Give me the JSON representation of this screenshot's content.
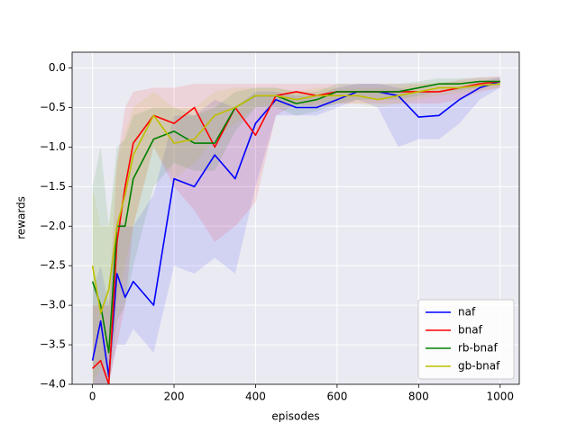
{
  "chart_data": {
    "type": "line",
    "xlabel": "episodes",
    "ylabel": "rewards",
    "x": [
      0,
      20,
      40,
      60,
      80,
      100,
      150,
      200,
      250,
      300,
      350,
      400,
      450,
      500,
      550,
      600,
      650,
      700,
      750,
      800,
      850,
      900,
      950,
      1000
    ],
    "series": [
      {
        "name": "naf",
        "color": "#0000ff",
        "values": [
          -3.7,
          -3.2,
          -3.9,
          -2.6,
          -2.9,
          -2.7,
          -3.0,
          -1.4,
          -1.5,
          -1.1,
          -1.4,
          -0.7,
          -0.4,
          -0.5,
          -0.5,
          -0.4,
          -0.3,
          -0.3,
          -0.35,
          -0.62,
          -0.6,
          -0.4,
          -0.25,
          -0.17
        ],
        "lower": [
          -4.0,
          -4.0,
          -4.0,
          -3.5,
          -3.5,
          -3.3,
          -3.6,
          -2.5,
          -2.6,
          -2.4,
          -2.6,
          -1.5,
          -0.6,
          -0.6,
          -0.6,
          -0.5,
          -0.4,
          -0.5,
          -1.0,
          -0.9,
          -0.9,
          -0.7,
          -0.4,
          -0.25
        ],
        "upper": [
          -2.8,
          -2.5,
          -3.0,
          -1.9,
          -2.0,
          -2.0,
          -1.6,
          -0.6,
          -0.6,
          -0.4,
          -0.5,
          -0.3,
          -0.3,
          -0.35,
          -0.35,
          -0.25,
          -0.2,
          -0.2,
          -0.25,
          -0.3,
          -0.3,
          -0.25,
          -0.17,
          -0.12
        ]
      },
      {
        "name": "bnaf",
        "color": "#ff0000",
        "values": [
          -3.8,
          -3.7,
          -4.0,
          -2.2,
          -1.5,
          -0.95,
          -0.6,
          -0.7,
          -0.5,
          -1.0,
          -0.5,
          -0.85,
          -0.35,
          -0.3,
          -0.35,
          -0.3,
          -0.3,
          -0.3,
          -0.3,
          -0.3,
          -0.3,
          -0.25,
          -0.2,
          -0.17
        ],
        "lower": [
          -4.0,
          -4.0,
          -4.0,
          -3.5,
          -3.0,
          -2.0,
          -1.0,
          -1.5,
          -1.8,
          -2.2,
          -2.0,
          -1.7,
          -0.6,
          -0.45,
          -0.5,
          -0.45,
          -0.45,
          -0.45,
          -0.45,
          -0.45,
          -0.45,
          -0.4,
          -0.3,
          -0.25
        ],
        "upper": [
          -3.0,
          -3.0,
          -3.0,
          -1.2,
          -0.5,
          -0.3,
          -0.25,
          -0.25,
          -0.2,
          -0.2,
          -0.2,
          -0.2,
          -0.2,
          -0.2,
          -0.2,
          -0.2,
          -0.2,
          -0.2,
          -0.2,
          -0.2,
          -0.2,
          -0.15,
          -0.12,
          -0.1
        ]
      },
      {
        "name": "rb-bnaf",
        "color": "#008000",
        "values": [
          -2.7,
          -3.0,
          -3.6,
          -2.0,
          -2.0,
          -1.4,
          -0.9,
          -0.8,
          -0.95,
          -0.95,
          -0.5,
          -0.35,
          -0.35,
          -0.45,
          -0.4,
          -0.3,
          -0.3,
          -0.3,
          -0.3,
          -0.25,
          -0.2,
          -0.2,
          -0.17,
          -0.17
        ],
        "lower": [
          -4.0,
          -4.0,
          -4.0,
          -3.2,
          -3.0,
          -2.5,
          -1.5,
          -1.2,
          -1.3,
          -1.3,
          -0.8,
          -0.5,
          -0.5,
          -0.6,
          -0.55,
          -0.45,
          -0.4,
          -0.4,
          -0.4,
          -0.35,
          -0.3,
          -0.28,
          -0.25,
          -0.22
        ],
        "upper": [
          -1.5,
          -1.0,
          -2.0,
          -1.0,
          -0.9,
          -0.6,
          -0.5,
          -0.5,
          -0.6,
          -0.5,
          -0.3,
          -0.25,
          -0.25,
          -0.3,
          -0.3,
          -0.2,
          -0.2,
          -0.2,
          -0.2,
          -0.17,
          -0.13,
          -0.13,
          -0.12,
          -0.12
        ]
      },
      {
        "name": "gb-bnaf",
        "color": "#bfbf00",
        "values": [
          -2.5,
          -3.1,
          -2.8,
          -2.0,
          -1.6,
          -1.1,
          -0.6,
          -0.95,
          -0.9,
          -0.6,
          -0.5,
          -0.35,
          -0.35,
          -0.4,
          -0.35,
          -0.35,
          -0.35,
          -0.4,
          -0.35,
          -0.3,
          -0.25,
          -0.25,
          -0.22,
          -0.2
        ],
        "lower": [
          -4.0,
          -3.8,
          -3.6,
          -3.0,
          -2.5,
          -2.0,
          -1.0,
          -1.4,
          -1.2,
          -0.9,
          -0.7,
          -0.5,
          -0.45,
          -0.5,
          -0.45,
          -0.45,
          -0.45,
          -0.5,
          -0.45,
          -0.4,
          -0.35,
          -0.32,
          -0.28,
          -0.25
        ],
        "upper": [
          -1.5,
          -2.0,
          -2.0,
          -1.2,
          -0.8,
          -0.5,
          -0.3,
          -0.5,
          -0.5,
          -0.3,
          -0.25,
          -0.25,
          -0.25,
          -0.3,
          -0.25,
          -0.25,
          -0.25,
          -0.25,
          -0.25,
          -0.2,
          -0.18,
          -0.17,
          -0.16,
          -0.15
        ]
      }
    ],
    "xlim": [
      -50,
      1047
    ],
    "ylim": [
      -4.0,
      0.2
    ],
    "xticks": [
      0,
      200,
      400,
      600,
      800,
      1000
    ],
    "yticks": [
      {
        "value": 0.0,
        "label": "0.0"
      },
      {
        "value": -0.5,
        "label": "−0.5"
      },
      {
        "value": -1.0,
        "label": "−1.0"
      },
      {
        "value": -1.5,
        "label": "−1.5"
      },
      {
        "value": -2.0,
        "label": "−2.0"
      },
      {
        "value": -2.5,
        "label": "−2.5"
      },
      {
        "value": -3.0,
        "label": "−3.0"
      },
      {
        "value": -3.5,
        "label": "−3.5"
      },
      {
        "value": -4.0,
        "label": "−4.0"
      }
    ],
    "grid": true,
    "legend": "lower right",
    "band_opacity": 0.1
  }
}
